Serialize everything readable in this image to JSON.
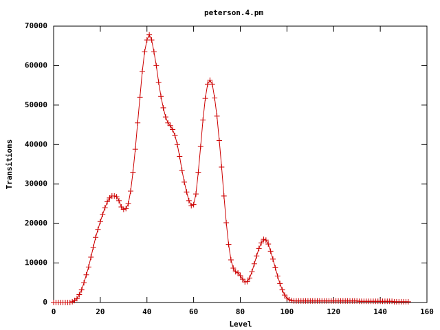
{
  "chart_data": {
    "type": "line",
    "title": "peterson.4.pm",
    "x_label": "Level",
    "y_label": "Transitions",
    "color": "#cc0000",
    "markers": "plus",
    "grid": false,
    "xlim": [
      0,
      160
    ],
    "xticks": [
      0,
      20,
      40,
      60,
      80,
      100,
      120,
      140,
      160
    ],
    "ylim": [
      0,
      70000
    ],
    "yticks": [
      0,
      10000,
      20000,
      30000,
      40000,
      50000,
      60000,
      70000
    ],
    "x": [
      0,
      1,
      2,
      3,
      4,
      5,
      6,
      7,
      8,
      9,
      10,
      11,
      12,
      13,
      14,
      15,
      16,
      17,
      18,
      19,
      20,
      21,
      22,
      23,
      24,
      25,
      26,
      27,
      28,
      29,
      30,
      31,
      32,
      33,
      34,
      35,
      36,
      37,
      38,
      39,
      40,
      41,
      42,
      43,
      44,
      45,
      46,
      47,
      48,
      49,
      50,
      51,
      52,
      53,
      54,
      55,
      56,
      57,
      58,
      59,
      60,
      61,
      62,
      63,
      64,
      65,
      66,
      67,
      68,
      69,
      70,
      71,
      72,
      73,
      74,
      75,
      76,
      77,
      78,
      79,
      80,
      81,
      82,
      83,
      84,
      85,
      86,
      87,
      88,
      89,
      90,
      91,
      92,
      93,
      94,
      95,
      96,
      97,
      98,
      99,
      100,
      101,
      102,
      103,
      104,
      105,
      106,
      107,
      108,
      109,
      110,
      111,
      112,
      113,
      114,
      115,
      116,
      117,
      118,
      119,
      120,
      121,
      122,
      123,
      124,
      125,
      126,
      127,
      128,
      129,
      130,
      131,
      132,
      133,
      134,
      135,
      136,
      137,
      138,
      139,
      140,
      141,
      142,
      143,
      144,
      145,
      146,
      147,
      148,
      149,
      150,
      151,
      152
    ],
    "values": [
      0,
      0,
      0,
      0,
      0,
      0,
      0,
      0,
      200,
      500,
      1000,
      2000,
      3200,
      5000,
      7000,
      9000,
      11500,
      14000,
      16500,
      18500,
      20500,
      22300,
      24000,
      25500,
      26500,
      27000,
      27000,
      26800,
      25800,
      24200,
      23600,
      23800,
      25000,
      28200,
      33000,
      38800,
      45500,
      52000,
      58500,
      63500,
      66500,
      67800,
      66500,
      63500,
      60000,
      55800,
      52200,
      49300,
      47000,
      45500,
      44800,
      43800,
      42300,
      40000,
      37000,
      33500,
      30500,
      28000,
      25800,
      24500,
      24800,
      27500,
      33000,
      39500,
      46200,
      51700,
      55300,
      56300,
      55300,
      51800,
      47200,
      41000,
      34300,
      27000,
      20200,
      14700,
      10800,
      8700,
      7800,
      7500,
      6800,
      5900,
      5200,
      5300,
      6200,
      7800,
      9800,
      11800,
      13700,
      15100,
      16000,
      15800,
      14800,
      13000,
      11000,
      8800,
      6700,
      4800,
      3200,
      1900,
      1100,
      700,
      500,
      400,
      400,
      400,
      400,
      400,
      400,
      400,
      400,
      400,
      400,
      400,
      400,
      400,
      400,
      400,
      400,
      400,
      400,
      400,
      400,
      400,
      400,
      400,
      400,
      400,
      400,
      400,
      400,
      300,
      300,
      300,
      300,
      300,
      300,
      300,
      300,
      300,
      300,
      300,
      300,
      300,
      300,
      300,
      200,
      200,
      200,
      200,
      200,
      200,
      200
    ]
  }
}
